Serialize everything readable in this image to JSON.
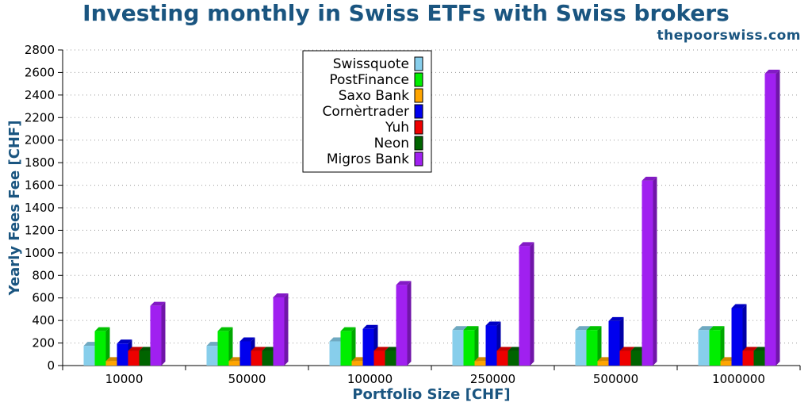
{
  "header": {
    "title": "Investing monthly in Swiss ETFs with Swiss brokers",
    "site": "thepoorswiss.com"
  },
  "chart_data": {
    "type": "bar",
    "title": "Investing monthly in Swiss ETFs with Swiss brokers",
    "xlabel": "Portfolio Size [CHF]",
    "ylabel": "Yearly Fees Fee [CHF]",
    "ylim": [
      0,
      2800
    ],
    "yticks": [
      0,
      200,
      400,
      600,
      800,
      1000,
      1200,
      1400,
      1600,
      1800,
      2000,
      2200,
      2400,
      2600,
      2800
    ],
    "grid": "horizontal-dotted",
    "legend_position": "top-left",
    "categories": [
      "10000",
      "50000",
      "100000",
      "250000",
      "500000",
      "1000000"
    ],
    "series": [
      {
        "name": "Swissquote",
        "color": "#87ceeb",
        "values": [
          175,
          175,
          215,
          315,
          315,
          315
        ]
      },
      {
        "name": "PostFinance",
        "color": "#00ee00",
        "values": [
          305,
          305,
          305,
          315,
          315,
          315
        ]
      },
      {
        "name": "Saxo Bank",
        "color": "#ffa500",
        "values": [
          40,
          40,
          40,
          40,
          40,
          40
        ]
      },
      {
        "name": "Cornèrtrader",
        "color": "#0000ee",
        "values": [
          195,
          215,
          325,
          355,
          395,
          510
        ]
      },
      {
        "name": "Yuh",
        "color": "#ee0000",
        "values": [
          130,
          130,
          130,
          130,
          130,
          130
        ]
      },
      {
        "name": "Neon",
        "color": "#006400",
        "values": [
          130,
          130,
          130,
          130,
          130,
          130
        ]
      },
      {
        "name": "Migros Bank",
        "color": "#a020f0",
        "values": [
          530,
          605,
          715,
          1060,
          1640,
          2590
        ]
      }
    ]
  }
}
